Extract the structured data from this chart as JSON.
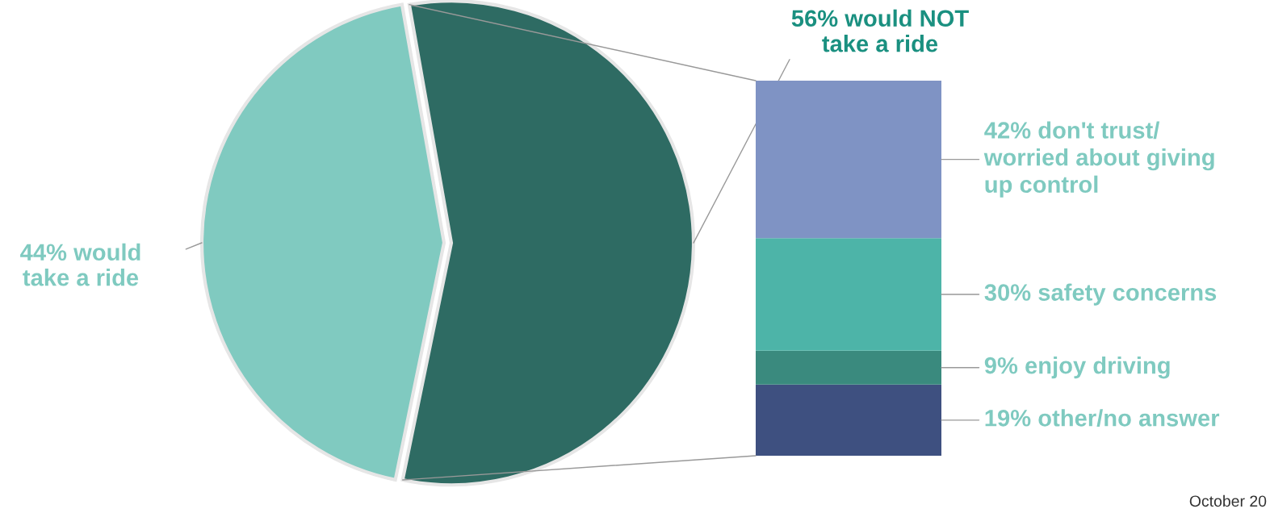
{
  "chart_data": [
    {
      "type": "pie",
      "categories": [
        "44% would\ntake a ride",
        "56% would NOT\ntake a ride"
      ],
      "values": [
        44,
        56
      ],
      "colors": [
        "#80cac0",
        "#2e6b63"
      ],
      "annotations": [
        "October 20"
      ]
    },
    {
      "type": "bar",
      "stacked": true,
      "categories": [
        null
      ],
      "tick_labels": false,
      "series": [
        {
          "color": "#3e5080",
          "values": [
            19
          ],
          "value_labels": [
            "19% other/no answer"
          ]
        },
        {
          "color": "#3a8a7e",
          "values": [
            9
          ],
          "value_labels": [
            "9% enjoy driving"
          ]
        },
        {
          "color": "#4db4a8",
          "values": [
            30
          ],
          "value_labels": [
            "30% safety concerns"
          ]
        },
        {
          "color": "#7f93c4",
          "values": [
            42
          ],
          "value_labels": [
            "42% don't trust/\nworried about giving\nup control"
          ]
        }
      ]
    }
  ]
}
